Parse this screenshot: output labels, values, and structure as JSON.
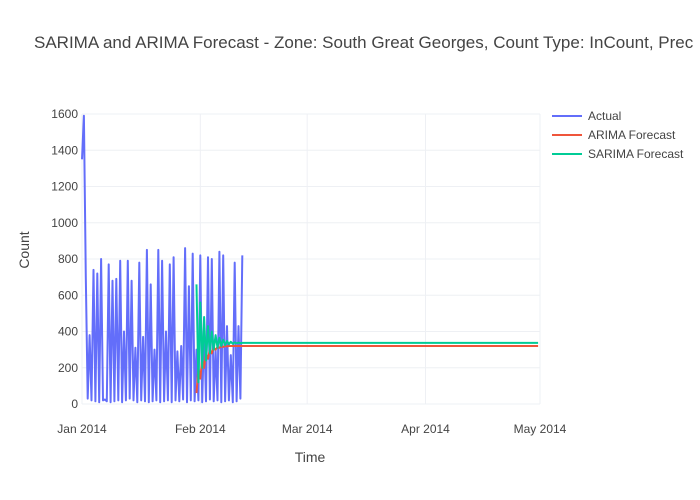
{
  "chart_data": {
    "type": "line",
    "title": "SARIMA and ARIMA Forecast - Zone: South Great Georges, Count Type: InCount, Prec",
    "xlabel": "Time",
    "ylabel": "Count",
    "x_range": [
      "2014-01-01",
      "2014-05-01"
    ],
    "ylim": [
      0,
      1600
    ],
    "x_ticks": [
      "Jan 2014",
      "Feb 2014",
      "Mar 2014",
      "Apr 2014",
      "May 2014"
    ],
    "y_ticks": [
      0,
      200,
      400,
      600,
      800,
      1000,
      1200,
      1400,
      1600
    ],
    "grid": true,
    "legend_position": "top-right",
    "series": [
      {
        "name": "Actual",
        "color": "#636efa",
        "x_start": "2014-01-01",
        "x_step_days": 0.5,
        "values": [
          1350,
          1590,
          700,
          30,
          380,
          20,
          740,
          15,
          720,
          10,
          800,
          20,
          25,
          15,
          770,
          10,
          680,
          15,
          690,
          20,
          790,
          10,
          400,
          20,
          790,
          30,
          680,
          20,
          310,
          10,
          780,
          20,
          370,
          15,
          850,
          10,
          660,
          15,
          300,
          20,
          850,
          10,
          790,
          15,
          400,
          20,
          770,
          10,
          810,
          20,
          290,
          15,
          320,
          25,
          860,
          10,
          650,
          20,
          830,
          15,
          300,
          20,
          820,
          10,
          420,
          15,
          810,
          25,
          800,
          15,
          300,
          20,
          840,
          10,
          820,
          15,
          430,
          20,
          270,
          10,
          780,
          15,
          430,
          30,
          820
        ]
      },
      {
        "name": "ARIMA Forecast",
        "color": "#ef553b",
        "x_start": "2014-01-31",
        "x_step_days": 0.5,
        "values": [
          60,
          200,
          140,
          250,
          200,
          280,
          250,
          300,
          280,
          310,
          300,
          315,
          310,
          318,
          315,
          320,
          318,
          320,
          320,
          320
        ],
        "steady_value": 320
      },
      {
        "name": "SARIMA Forecast",
        "color": "#00cc96",
        "x_start": "2014-01-31",
        "x_step_days": 0.5,
        "values": [
          660,
          120,
          560,
          200,
          480,
          240,
          430,
          280,
          400,
          300,
          380,
          310,
          365,
          320,
          355,
          325,
          348,
          330,
          343,
          332,
          340,
          335,
          338,
          336,
          337,
          337
        ],
        "steady_value": 337
      }
    ]
  }
}
